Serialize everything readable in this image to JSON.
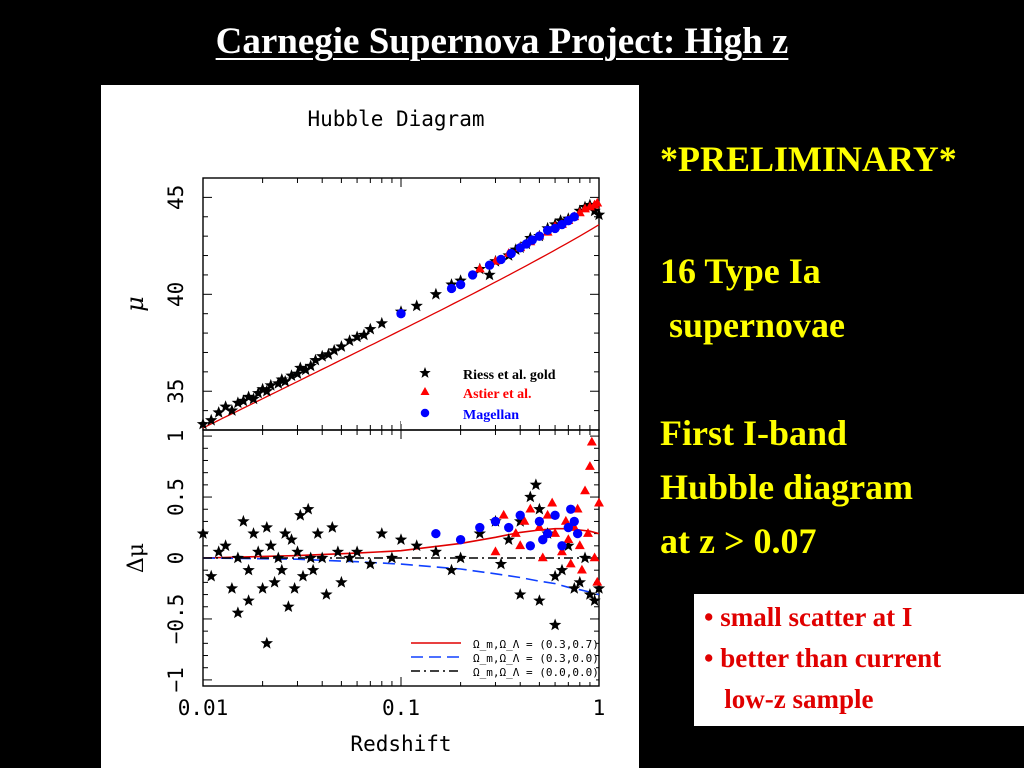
{
  "slide": {
    "title": "Carnegie Supernova Project: High z"
  },
  "side_text": {
    "preliminary": "*PRELIMINARY*",
    "count_line1": "16 Type Ia",
    "count_line2": " supernovae",
    "desc_line1": "First I-band",
    "desc_line2": "Hubble diagram",
    "desc_line3": "at z > 0.07"
  },
  "notes": {
    "line1": "• small scatter at I",
    "line2": "• better than current",
    "line3": "   low-z sample"
  },
  "colors": {
    "slide_bg": "#000000",
    "title": "#ffffff",
    "side_text": "#ffff00",
    "note_text": "#e00000",
    "riess": "#000000",
    "astier": "#ff0000",
    "magellan": "#0000ff",
    "model_0307": "#e00000",
    "model_0300": "#1040ff",
    "model_0000": "#000000"
  },
  "chart_data": [
    {
      "type": "scatter",
      "title": "Hubble Diagram",
      "xlabel": "Redshift",
      "ylabel": "μ",
      "x_scale": "log",
      "xlim": [
        0.01,
        1
      ],
      "ylim": [
        33,
        46
      ],
      "x_ticks": [
        0.01,
        0.1,
        1
      ],
      "x_tick_labels": [
        "0.01",
        "0.1",
        "1"
      ],
      "y_ticks": [
        35,
        40,
        45
      ],
      "y_tick_labels": [
        "35",
        "40",
        "45"
      ],
      "legend_position": "bottom-right",
      "series": [
        {
          "name": "Riess et al. gold",
          "marker": "star",
          "color": "#000000",
          "points": [
            [
              0.01,
              33.3
            ],
            [
              0.011,
              33.5
            ],
            [
              0.012,
              33.9
            ],
            [
              0.013,
              34.2
            ],
            [
              0.014,
              34.0
            ],
            [
              0.015,
              34.4
            ],
            [
              0.016,
              34.5
            ],
            [
              0.017,
              34.7
            ],
            [
              0.018,
              34.6
            ],
            [
              0.019,
              34.9
            ],
            [
              0.02,
              35.1
            ],
            [
              0.021,
              35.0
            ],
            [
              0.022,
              35.3
            ],
            [
              0.024,
              35.4
            ],
            [
              0.025,
              35.6
            ],
            [
              0.026,
              35.5
            ],
            [
              0.028,
              35.8
            ],
            [
              0.03,
              35.9
            ],
            [
              0.031,
              36.2
            ],
            [
              0.033,
              36.1
            ],
            [
              0.035,
              36.3
            ],
            [
              0.037,
              36.6
            ],
            [
              0.04,
              36.8
            ],
            [
              0.043,
              36.9
            ],
            [
              0.046,
              37.1
            ],
            [
              0.05,
              37.3
            ],
            [
              0.055,
              37.6
            ],
            [
              0.06,
              37.8
            ],
            [
              0.065,
              37.9
            ],
            [
              0.07,
              38.2
            ],
            [
              0.08,
              38.5
            ],
            [
              0.1,
              39.1
            ],
            [
              0.12,
              39.4
            ],
            [
              0.15,
              40.0
            ],
            [
              0.18,
              40.5
            ],
            [
              0.2,
              40.7
            ],
            [
              0.25,
              41.3
            ],
            [
              0.28,
              41.0
            ],
            [
              0.3,
              41.7
            ],
            [
              0.35,
              42.0
            ],
            [
              0.38,
              42.3
            ],
            [
              0.4,
              42.4
            ],
            [
              0.43,
              42.6
            ],
            [
              0.45,
              42.9
            ],
            [
              0.5,
              43.0
            ],
            [
              0.55,
              43.4
            ],
            [
              0.6,
              43.6
            ],
            [
              0.64,
              43.8
            ],
            [
              0.7,
              43.9
            ],
            [
              0.8,
              44.3
            ],
            [
              0.85,
              44.5
            ],
            [
              0.9,
              44.6
            ],
            [
              0.95,
              44.3
            ],
            [
              1.0,
              44.1
            ]
          ]
        },
        {
          "name": "Astier et al.",
          "marker": "triangle",
          "color": "#ff0000",
          "points": [
            [
              0.25,
              41.3
            ],
            [
              0.3,
              41.7
            ],
            [
              0.35,
              42.1
            ],
            [
              0.4,
              42.4
            ],
            [
              0.45,
              42.7
            ],
            [
              0.5,
              43.0
            ],
            [
              0.55,
              43.2
            ],
            [
              0.6,
              43.5
            ],
            [
              0.65,
              43.6
            ],
            [
              0.7,
              43.8
            ],
            [
              0.75,
              44.0
            ],
            [
              0.8,
              44.2
            ],
            [
              0.85,
              44.4
            ],
            [
              0.9,
              44.5
            ],
            [
              0.95,
              44.6
            ],
            [
              0.98,
              44.7
            ]
          ]
        },
        {
          "name": "Magellan",
          "marker": "circle",
          "color": "#0000ff",
          "points": [
            [
              0.1,
              39.0
            ],
            [
              0.18,
              40.3
            ],
            [
              0.2,
              40.5
            ],
            [
              0.23,
              41.0
            ],
            [
              0.28,
              41.5
            ],
            [
              0.32,
              41.8
            ],
            [
              0.36,
              42.1
            ],
            [
              0.4,
              42.4
            ],
            [
              0.43,
              42.6
            ],
            [
              0.46,
              42.8
            ],
            [
              0.5,
              43.0
            ],
            [
              0.55,
              43.3
            ],
            [
              0.6,
              43.4
            ],
            [
              0.65,
              43.6
            ],
            [
              0.7,
              43.8
            ],
            [
              0.75,
              44.0
            ]
          ]
        }
      ]
    },
    {
      "type": "scatter",
      "title": "",
      "xlabel": "Redshift",
      "ylabel": "Δμ",
      "x_scale": "log",
      "xlim": [
        0.01,
        1
      ],
      "ylim": [
        -1.05,
        1.05
      ],
      "x_ticks": [
        0.01,
        0.1,
        1
      ],
      "x_tick_labels": [
        "0.01",
        "0.1",
        "1"
      ],
      "y_ticks": [
        -1,
        -0.5,
        0,
        0.5,
        1
      ],
      "y_tick_labels": [
        "−1",
        "−0.5",
        "0",
        "0.5",
        "1"
      ],
      "legend_position": "bottom-right",
      "series": [
        {
          "name": "Riess et al. gold",
          "marker": "star",
          "color": "#000000",
          "points": [
            [
              0.01,
              0.2
            ],
            [
              0.011,
              -0.15
            ],
            [
              0.012,
              0.05
            ],
            [
              0.013,
              0.1
            ],
            [
              0.014,
              -0.25
            ],
            [
              0.015,
              0.0
            ],
            [
              0.015,
              -0.45
            ],
            [
              0.016,
              0.3
            ],
            [
              0.017,
              -0.35
            ],
            [
              0.017,
              -0.1
            ],
            [
              0.018,
              0.2
            ],
            [
              0.019,
              0.05
            ],
            [
              0.02,
              -0.25
            ],
            [
              0.021,
              -0.7
            ],
            [
              0.021,
              0.25
            ],
            [
              0.022,
              0.1
            ],
            [
              0.023,
              -0.2
            ],
            [
              0.024,
              0.0
            ],
            [
              0.025,
              -0.1
            ],
            [
              0.026,
              0.2
            ],
            [
              0.027,
              -0.4
            ],
            [
              0.028,
              0.15
            ],
            [
              0.029,
              -0.25
            ],
            [
              0.03,
              0.05
            ],
            [
              0.031,
              0.35
            ],
            [
              0.032,
              -0.15
            ],
            [
              0.034,
              0.4
            ],
            [
              0.035,
              0.0
            ],
            [
              0.036,
              -0.1
            ],
            [
              0.038,
              0.2
            ],
            [
              0.04,
              0.0
            ],
            [
              0.042,
              -0.3
            ],
            [
              0.045,
              0.25
            ],
            [
              0.048,
              0.05
            ],
            [
              0.05,
              -0.2
            ],
            [
              0.055,
              0.0
            ],
            [
              0.06,
              0.05
            ],
            [
              0.07,
              -0.05
            ],
            [
              0.08,
              0.2
            ],
            [
              0.09,
              0.0
            ],
            [
              0.1,
              0.15
            ],
            [
              0.12,
              0.1
            ],
            [
              0.15,
              0.05
            ],
            [
              0.18,
              -0.1
            ],
            [
              0.2,
              0.0
            ],
            [
              0.25,
              0.2
            ],
            [
              0.3,
              0.3
            ],
            [
              0.32,
              -0.05
            ],
            [
              0.35,
              0.15
            ],
            [
              0.4,
              -0.3
            ],
            [
              0.4,
              0.3
            ],
            [
              0.45,
              0.5
            ],
            [
              0.48,
              0.6
            ],
            [
              0.5,
              -0.35
            ],
            [
              0.5,
              0.4
            ],
            [
              0.55,
              0.2
            ],
            [
              0.6,
              -0.15
            ],
            [
              0.6,
              -0.55
            ],
            [
              0.65,
              -0.1
            ],
            [
              0.7,
              0.1
            ],
            [
              0.75,
              -0.25
            ],
            [
              0.8,
              -0.2
            ],
            [
              0.85,
              0.0
            ],
            [
              0.9,
              -0.3
            ],
            [
              0.95,
              -0.35
            ],
            [
              1.0,
              -0.25
            ]
          ]
        },
        {
          "name": "Astier et al.",
          "marker": "triangle",
          "color": "#ff0000",
          "points": [
            [
              0.3,
              0.05
            ],
            [
              0.33,
              0.35
            ],
            [
              0.38,
              0.2
            ],
            [
              0.4,
              0.1
            ],
            [
              0.42,
              0.3
            ],
            [
              0.45,
              0.4
            ],
            [
              0.5,
              0.25
            ],
            [
              0.52,
              0.0
            ],
            [
              0.55,
              0.35
            ],
            [
              0.58,
              0.45
            ],
            [
              0.6,
              0.2
            ],
            [
              0.65,
              0.05
            ],
            [
              0.68,
              0.3
            ],
            [
              0.7,
              0.15
            ],
            [
              0.72,
              -0.05
            ],
            [
              0.75,
              0.25
            ],
            [
              0.78,
              0.4
            ],
            [
              0.8,
              0.1
            ],
            [
              0.82,
              -0.1
            ],
            [
              0.85,
              0.55
            ],
            [
              0.88,
              0.2
            ],
            [
              0.9,
              0.75
            ],
            [
              0.92,
              0.95
            ],
            [
              0.95,
              0.0
            ],
            [
              0.98,
              -0.2
            ],
            [
              1.0,
              0.45
            ]
          ]
        },
        {
          "name": "Magellan",
          "marker": "circle",
          "color": "#0000ff",
          "points": [
            [
              0.15,
              0.2
            ],
            [
              0.2,
              0.15
            ],
            [
              0.25,
              0.25
            ],
            [
              0.3,
              0.3
            ],
            [
              0.35,
              0.25
            ],
            [
              0.4,
              0.35
            ],
            [
              0.45,
              0.1
            ],
            [
              0.5,
              0.3
            ],
            [
              0.52,
              0.15
            ],
            [
              0.55,
              0.2
            ],
            [
              0.6,
              0.35
            ],
            [
              0.65,
              0.1
            ],
            [
              0.7,
              0.25
            ],
            [
              0.72,
              0.4
            ],
            [
              0.75,
              0.3
            ],
            [
              0.78,
              0.2
            ]
          ]
        }
      ],
      "model_curves": [
        {
          "name": "Ω_m,Ω_Λ = (0.3,0.7)",
          "style": "solid",
          "color": "#e00000",
          "points": [
            [
              0.01,
              0.0
            ],
            [
              0.03,
              0.02
            ],
            [
              0.06,
              0.04
            ],
            [
              0.1,
              0.06
            ],
            [
              0.2,
              0.12
            ],
            [
              0.3,
              0.17
            ],
            [
              0.4,
              0.21
            ],
            [
              0.5,
              0.23
            ],
            [
              0.6,
              0.24
            ],
            [
              0.7,
              0.24
            ],
            [
              0.8,
              0.23
            ],
            [
              0.9,
              0.22
            ],
            [
              1.0,
              0.2
            ]
          ]
        },
        {
          "name": "Ω_m,Ω_Λ = (0.3,0.0)",
          "style": "dashed",
          "color": "#1040ff",
          "points": [
            [
              0.01,
              0.0
            ],
            [
              0.03,
              -0.01
            ],
            [
              0.06,
              -0.03
            ],
            [
              0.1,
              -0.05
            ],
            [
              0.2,
              -0.09
            ],
            [
              0.3,
              -0.13
            ],
            [
              0.4,
              -0.16
            ],
            [
              0.5,
              -0.19
            ],
            [
              0.6,
              -0.21
            ],
            [
              0.7,
              -0.24
            ],
            [
              0.8,
              -0.26
            ],
            [
              0.9,
              -0.28
            ],
            [
              1.0,
              -0.3
            ]
          ]
        },
        {
          "name": "Ω_m,Ω_Λ = (0.0,0.0)",
          "style": "dashdot",
          "color": "#000000",
          "points": [
            [
              0.01,
              0.0
            ],
            [
              1.0,
              0.0
            ]
          ]
        }
      ]
    }
  ]
}
